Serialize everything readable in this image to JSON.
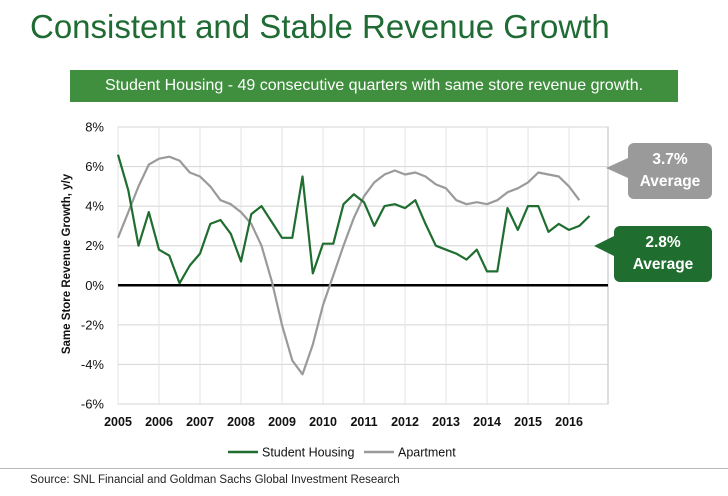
{
  "page": {
    "title": "Consistent and Stable Revenue Growth",
    "banner": "Student Housing - 49 consecutive quarters with same store revenue growth.",
    "source": "Source: SNL Financial and Goldman Sachs Global Investment Research"
  },
  "callouts": {
    "apartment": {
      "value": "3.7%",
      "label": "Average"
    },
    "student": {
      "value": "2.8%",
      "label": "Average"
    }
  },
  "colors": {
    "title": "#1e6b33",
    "banner": "#3f8f3f",
    "student": "#1f6e30",
    "apartment": "#9a9a9a",
    "zero_line": "#000000"
  },
  "chart_data": {
    "type": "line",
    "title": "",
    "ylabel": "Same Store Revenue Growth, y/y",
    "xlabel": "",
    "ylim": [
      -6,
      8
    ],
    "yticks": [
      8,
      6,
      4,
      2,
      0,
      -2,
      -4,
      -6
    ],
    "ytick_labels": [
      "8%",
      "6%",
      "4%",
      "2%",
      "0%",
      "-2%",
      "-4%",
      "-6%"
    ],
    "xticks": [
      "2005",
      "2006",
      "2007",
      "2008",
      "2009",
      "2010",
      "2011",
      "2012",
      "2013",
      "2014",
      "2015",
      "2016"
    ],
    "x_start": 2005.0,
    "x_step": 0.25,
    "x_range": [
      2005.0,
      2016.95
    ],
    "grid": true,
    "legend_position": "bottom",
    "series": [
      {
        "name": "Student Housing",
        "values": [
          6.6,
          4.8,
          2.0,
          3.7,
          1.8,
          1.5,
          0.1,
          1.0,
          1.6,
          3.1,
          3.3,
          2.6,
          1.2,
          3.6,
          4.0,
          3.2,
          2.4,
          2.4,
          5.5,
          0.6,
          2.1,
          2.1,
          4.1,
          4.6,
          4.2,
          3.0,
          4.0,
          4.1,
          3.9,
          4.3,
          3.1,
          2.0,
          1.8,
          1.6,
          1.3,
          1.8,
          0.7,
          0.7,
          3.9,
          2.8,
          4.0,
          4.0,
          2.7,
          3.1,
          2.8,
          3.0,
          3.5
        ]
      },
      {
        "name": "Apartment",
        "values": [
          2.4,
          3.7,
          5.0,
          6.1,
          6.4,
          6.5,
          6.3,
          5.7,
          5.5,
          5.0,
          4.3,
          4.1,
          3.7,
          3.1,
          2.0,
          0.2,
          -2.0,
          -3.8,
          -4.5,
          -3.0,
          -1.0,
          0.5,
          2.0,
          3.4,
          4.5,
          5.2,
          5.6,
          5.8,
          5.6,
          5.7,
          5.5,
          5.1,
          4.9,
          4.3,
          4.1,
          4.2,
          4.1,
          4.3,
          4.7,
          4.9,
          5.2,
          5.7,
          5.6,
          5.5,
          5.0,
          4.3
        ]
      }
    ]
  }
}
